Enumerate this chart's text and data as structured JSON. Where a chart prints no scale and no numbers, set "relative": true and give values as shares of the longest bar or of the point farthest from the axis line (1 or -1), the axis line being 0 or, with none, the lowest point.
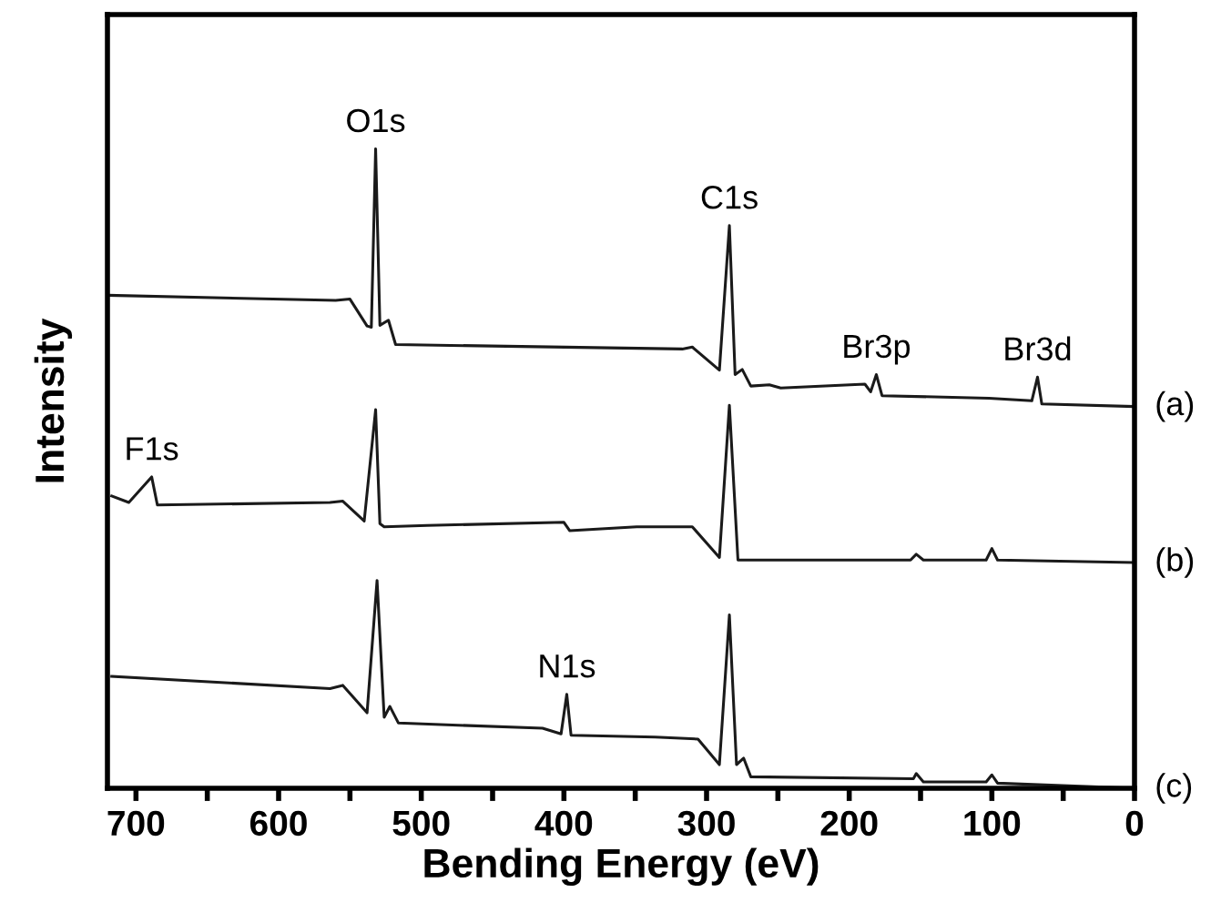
{
  "chart_data": {
    "type": "line",
    "relative": true,
    "xlabel": "Bending Energy (eV)",
    "ylabel": "Intensity",
    "xlim": [
      720,
      0
    ],
    "xticks": [
      700,
      {
        "value": 650,
        "label": null
      },
      600,
      {
        "value": 550,
        "label": null
      },
      500,
      {
        "value": 450,
        "label": null
      },
      400,
      {
        "value": 350,
        "label": null
      },
      300,
      {
        "value": 250,
        "label": null
      },
      200,
      {
        "value": 150,
        "label": null
      },
      100,
      {
        "value": 50,
        "label": null
      },
      0
    ],
    "tick_labels": "x",
    "grid": false,
    "legend": false,
    "series": [
      {
        "name": "(a)",
        "color": "#1a1a1a",
        "x": [
          720,
          560,
          550,
          538,
          535,
          532,
          529,
          523,
          518,
          317,
          310,
          291,
          284,
          280,
          275,
          269,
          256,
          248,
          189,
          185,
          181,
          177,
          102,
          72,
          68,
          65,
          0
        ],
        "values": [
          0.771,
          0.763,
          0.765,
          0.723,
          0.721,
          1.0,
          0.724,
          0.732,
          0.694,
          0.687,
          0.69,
          0.654,
          0.88,
          0.647,
          0.655,
          0.629,
          0.631,
          0.626,
          0.632,
          0.62,
          0.647,
          0.614,
          0.61,
          0.606,
          0.643,
          0.601,
          0.597
        ]
      },
      {
        "name": "(b)",
        "color": "#1a1a1a",
        "x": [
          717,
          705,
          689,
          685,
          564,
          555,
          540,
          532,
          529,
          526,
          496,
          400,
          396,
          349,
          310,
          291,
          284,
          278,
          157,
          153,
          148,
          104,
          100,
          96,
          0
        ],
        "values": [
          0.457,
          0.447,
          0.487,
          0.443,
          0.447,
          0.449,
          0.418,
          0.592,
          0.414,
          0.409,
          0.411,
          0.416,
          0.403,
          0.409,
          0.409,
          0.361,
          0.599,
          0.357,
          0.357,
          0.366,
          0.357,
          0.357,
          0.375,
          0.357,
          0.353
        ]
      },
      {
        "name": "(c)",
        "color": "#1a1a1a",
        "x": [
          717,
          564,
          555,
          538,
          531,
          526,
          522,
          516,
          415,
          402,
          398,
          395,
          336,
          306,
          291,
          284,
          279,
          274,
          269,
          155,
          153,
          148,
          104,
          100,
          96,
          0
        ],
        "values": [
          0.175,
          0.156,
          0.161,
          0.118,
          0.325,
          0.111,
          0.128,
          0.102,
          0.094,
          0.085,
          0.147,
          0.083,
          0.08,
          0.077,
          0.037,
          0.271,
          0.037,
          0.047,
          0.018,
          0.015,
          0.023,
          0.01,
          0.01,
          0.021,
          0.008,
          0.0
        ]
      }
    ],
    "annotations": [
      {
        "text": "O1s",
        "x": 532,
        "y": 1.0
      },
      {
        "text": "C1s",
        "x": 284,
        "y": 0.88
      },
      {
        "text": "Br3p",
        "x": 181,
        "y": 0.647
      },
      {
        "text": "Br3d",
        "x": 68,
        "y": 0.643
      },
      {
        "text": "F1s",
        "x": 689,
        "y": 0.487
      },
      {
        "text": "N1s",
        "x": 398,
        "y": 0.147
      }
    ]
  }
}
